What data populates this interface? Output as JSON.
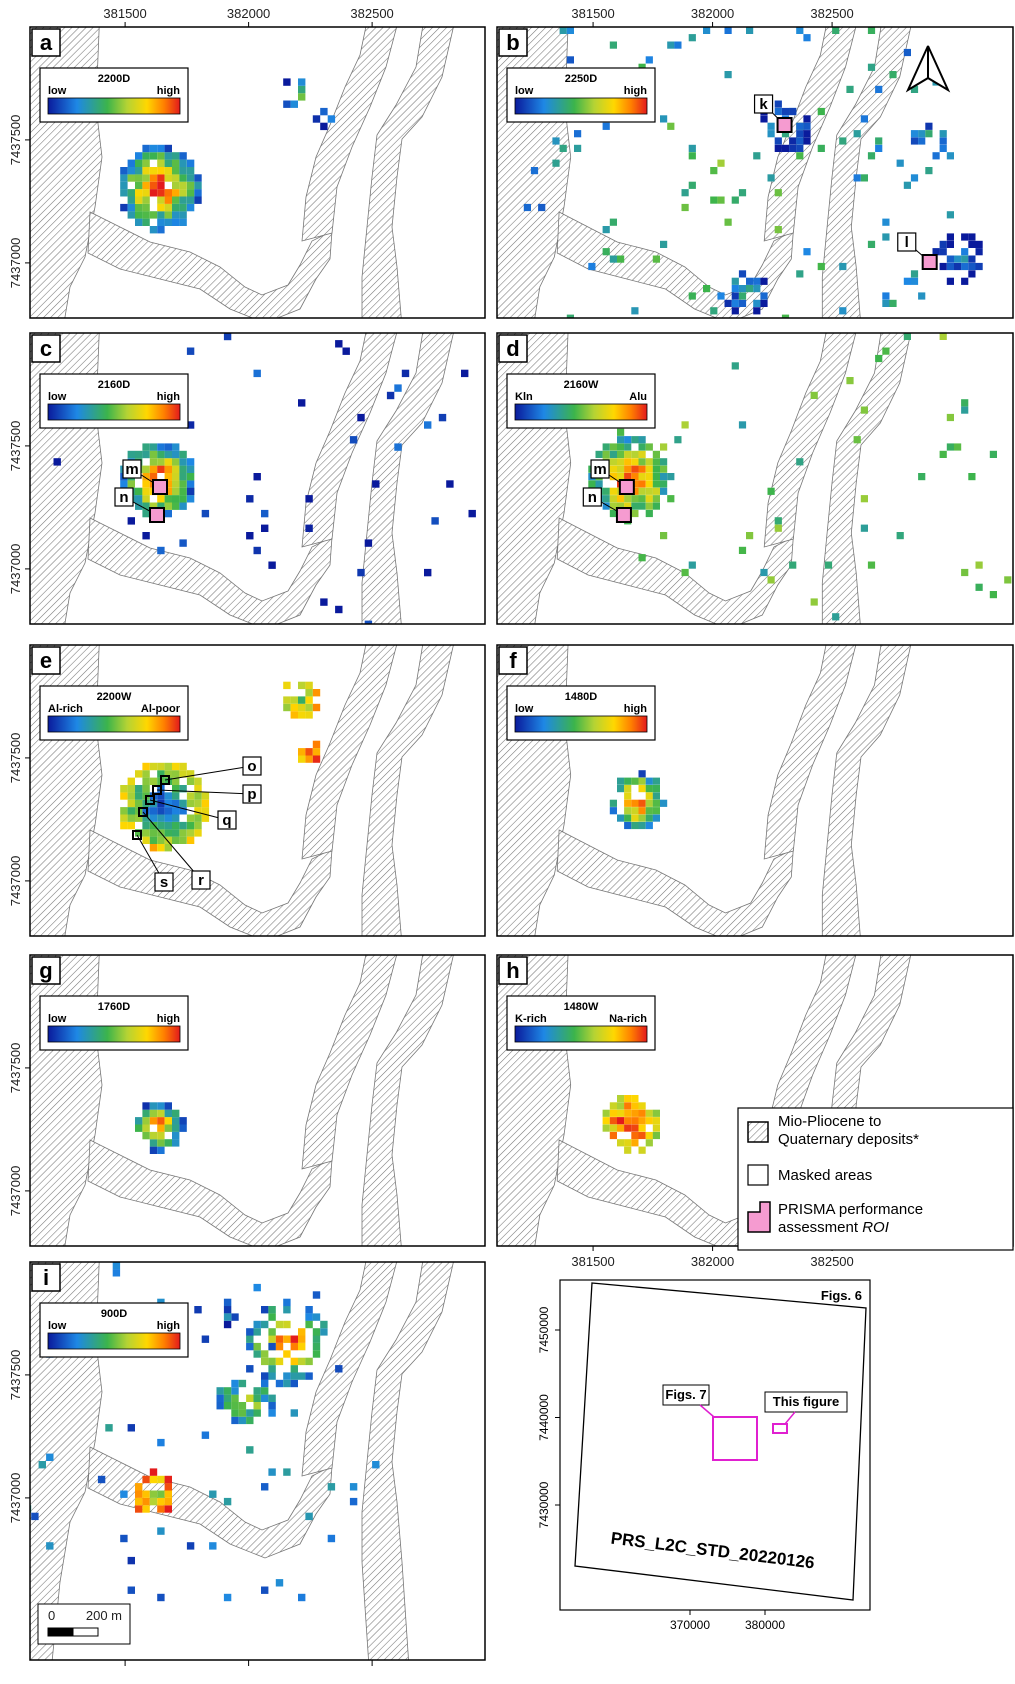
{
  "panels": [
    {
      "id": "a",
      "legend_title": "2200D",
      "low": "low",
      "high": "high",
      "rois": []
    },
    {
      "id": "b",
      "legend_title": "2250D",
      "low": "low",
      "high": "high",
      "rois": [
        "k",
        "l"
      ]
    },
    {
      "id": "c",
      "legend_title": "2160D",
      "low": "low",
      "high": "high",
      "rois": [
        "m",
        "n"
      ]
    },
    {
      "id": "d",
      "legend_title": "2160W",
      "low": "Kln",
      "high": "Alu",
      "rois": [
        "m",
        "n"
      ]
    },
    {
      "id": "e",
      "legend_title": "2200W",
      "low": "Al-rich",
      "high": "Al-poor",
      "rois": [
        "o",
        "p",
        "q",
        "r",
        "s"
      ]
    },
    {
      "id": "f",
      "legend_title": "1480D",
      "low": "low",
      "high": "high",
      "rois": []
    },
    {
      "id": "g",
      "legend_title": "1760D",
      "low": "low",
      "high": "high",
      "rois": []
    },
    {
      "id": "h",
      "legend_title": "1480W",
      "low": "K-rich",
      "high": "Na-rich",
      "rois": []
    },
    {
      "id": "i",
      "legend_title": "900D",
      "low": "low",
      "high": "high",
      "rois": []
    }
  ],
  "axes": {
    "easting_ticks": [
      381500,
      382000,
      382500
    ],
    "northing_ticks": [
      7437500,
      7437000
    ],
    "xlim_left": [
      381115,
      382957
    ],
    "xlim_right": [
      381098,
      383257
    ],
    "ylim": [
      7436776,
      7437959
    ],
    "ylim_tall": [
      7436341,
      7437959
    ]
  },
  "scale_bar": {
    "zero": "0",
    "length": "200 m"
  },
  "legend": {
    "items": [
      {
        "lines": [
          "Mio-Pliocene to",
          "Quaternary deposits*"
        ]
      },
      {
        "lines": [
          "Masked areas"
        ]
      },
      {
        "lines": [
          "PRISMA performance",
          "assessment"
        ],
        "italic": "ROI"
      }
    ]
  },
  "inset": {
    "title": "Figs. 6",
    "figs7": "Figs. 7",
    "this_figure": "This figure",
    "scene": "PRS_L2C_STD_20220126",
    "xticks": [
      370000,
      380000
    ],
    "yticks": [
      7450000,
      7440000,
      7430000
    ],
    "xlim": [
      352667,
      394000
    ],
    "ylim": [
      7418000,
      7455714
    ]
  }
}
